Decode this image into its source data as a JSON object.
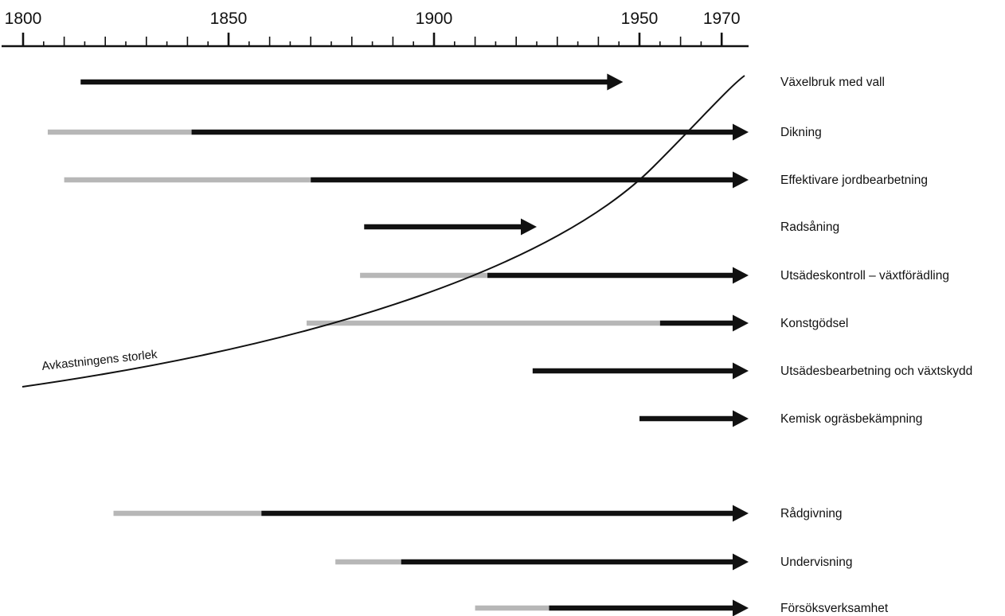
{
  "chart_data": {
    "type": "timeline",
    "axis": {
      "range": [
        1800,
        1970
      ],
      "labeled_ticks": [
        1800,
        1850,
        1900,
        1950,
        1970
      ],
      "major_tick_step": 10,
      "minor_tick_step": 5
    },
    "curve": {
      "label": "Avkastningens storlek",
      "color": "#111111"
    },
    "colors": {
      "early": "#b7b7b7",
      "main": "#111111",
      "axis": "#111111"
    },
    "group_a": [
      {
        "label": "Växelbruk med vall",
        "main_start": 1814,
        "end": 1946
      },
      {
        "label": "Dikning",
        "early_start": 1806,
        "main_start": 1841,
        "end": 1980
      },
      {
        "label": "Effektivare jordbearbetning",
        "early_start": 1810,
        "main_start": 1870,
        "end": 1980
      },
      {
        "label": "Radsåning",
        "main_start": 1883,
        "end": 1925
      },
      {
        "label": "Utsädeskontroll – växtförädling",
        "early_start": 1882,
        "main_start": 1913,
        "end": 1980
      },
      {
        "label": "Konstgödsel",
        "early_start": 1869,
        "main_start": 1955,
        "end": 1980
      },
      {
        "label": "Utsädesbearbetning och växtskydd",
        "main_start": 1924,
        "end": 1980
      },
      {
        "label": "Kemisk ogräsbekämpning",
        "main_start": 1950,
        "end": 1980
      }
    ],
    "group_b": [
      {
        "label": "Rådgivning",
        "early_start": 1822,
        "main_start": 1858,
        "end": 1980
      },
      {
        "label": "Undervisning",
        "early_start": 1876,
        "main_start": 1892,
        "end": 1980
      },
      {
        "label": "Försöksverksamhet",
        "early_start": 1910,
        "main_start": 1928,
        "end": 1980
      }
    ]
  }
}
